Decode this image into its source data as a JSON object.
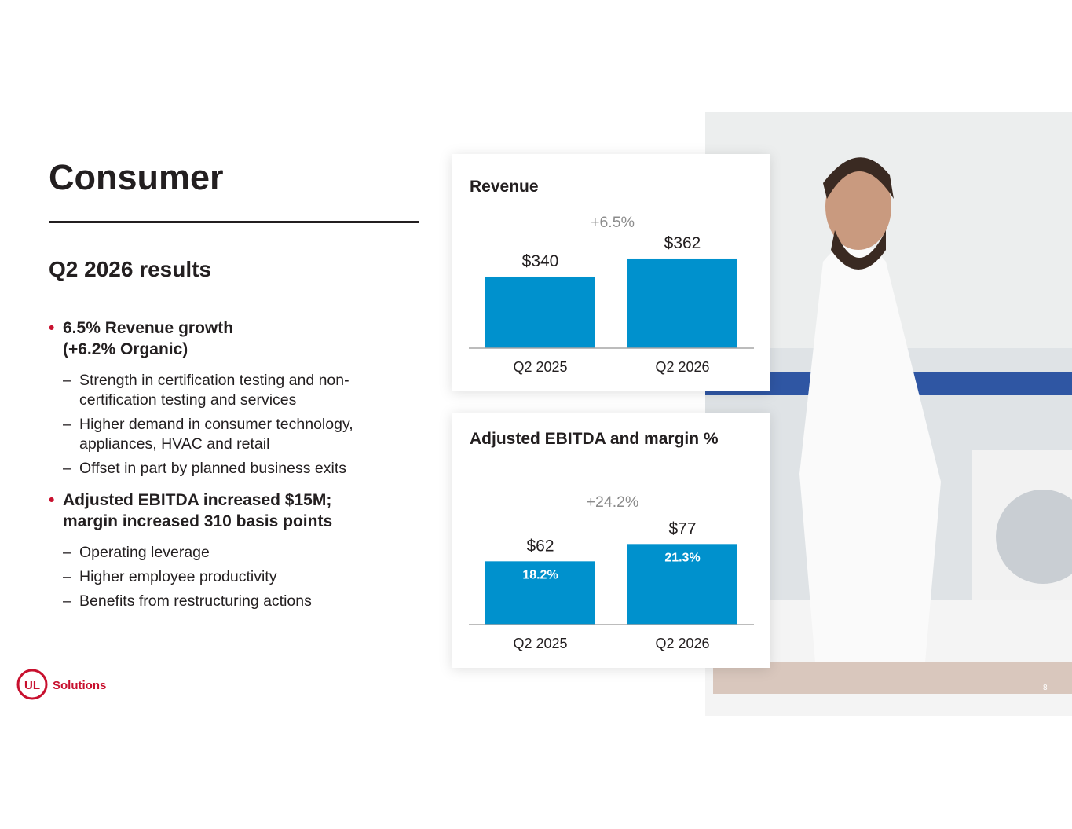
{
  "header": {
    "title": "Consumer",
    "subtitle": "Q2 2026 results"
  },
  "bullets": [
    {
      "text": "6.5% Revenue growth (+6.2% Organic)",
      "subs": [
        "Strength in certification testing and non-certification testing and services",
        "Higher demand in consumer technology, appliances, HVAC and retail",
        "Offset in part by planned business exits"
      ]
    },
    {
      "text": "Adjusted EBITDA increased $15M; margin increased 310 basis points",
      "subs": [
        "Operating leverage",
        "Higher employee productivity",
        "Benefits from restructuring actions"
      ]
    }
  ],
  "chart_data": [
    {
      "type": "bar",
      "title": "Revenue",
      "annotation": "+6.5%",
      "categories": [
        "Q2 2025",
        "Q2 2026"
      ],
      "values": [
        340,
        362
      ],
      "value_labels": [
        "$340",
        "$362"
      ],
      "color": "#0091cd",
      "ylim": [
        253,
        383
      ]
    },
    {
      "type": "bar",
      "title": "Adjusted EBITDA and margin %",
      "annotation": "+24.2%",
      "categories": [
        "Q2 2025",
        "Q2 2026"
      ],
      "values": [
        62,
        77
      ],
      "value_labels": [
        "$62",
        "$77"
      ],
      "margin_values": [
        18.2,
        21.3
      ],
      "margin_labels": [
        "18.2%",
        "21.3%"
      ],
      "color": "#0091cd",
      "ylim": [
        7,
        97
      ]
    }
  ],
  "logo": "Solutions",
  "page_number": "8"
}
